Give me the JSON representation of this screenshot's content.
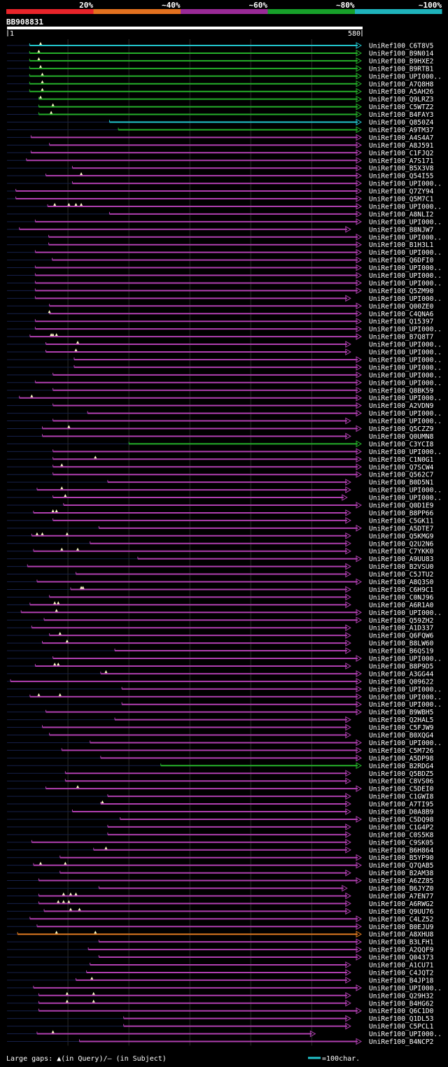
{
  "legend": {
    "pct_labels": [
      "20%",
      "~40%",
      "~60%",
      "~80%",
      "~100%"
    ],
    "colors": [
      "#e8242a",
      "#e3711f",
      "#9a2a97",
      "#17a02a",
      "#1fb3bc"
    ]
  },
  "query": {
    "name": "BB908831",
    "start_label": "1",
    "end_label": "580",
    "length": 580
  },
  "footer": {
    "gaps_label": "Large gaps: ▲(in Query)/— (in Subject)",
    "scale_label": "=100char."
  },
  "line_colors": {
    "purple": "#b03fb0",
    "green": "#25b02a",
    "cyan": "#22c4cc",
    "orange": "#e07a20"
  },
  "hits": [
    {
      "n": "UniRef100_C6T8V5",
      "s": 0.064,
      "c": "cyan",
      "g": [
        0.095
      ]
    },
    {
      "n": "UniRef100_B9N014",
      "s": 0.064,
      "c": "green",
      "g": [
        0.09
      ]
    },
    {
      "n": "UniRef100_B9HXE2",
      "s": 0.064,
      "c": "green",
      "g": [
        0.09
      ]
    },
    {
      "n": "UniRef100_B9RTB1",
      "s": 0.064,
      "c": "green",
      "g": [
        0.095
      ]
    },
    {
      "n": "UniRef100_UPI000..",
      "s": 0.064,
      "c": "green",
      "g": [
        0.1
      ]
    },
    {
      "n": "UniRef100_A7Q8H8",
      "s": 0.064,
      "c": "green",
      "g": [
        0.1
      ]
    },
    {
      "n": "UniRef100_A5AH26",
      "s": 0.064,
      "c": "green",
      "g": [
        0.1
      ]
    },
    {
      "n": "UniRef100_Q9LRZ3",
      "s": 0.09,
      "c": "green",
      "g": [
        0.095
      ]
    },
    {
      "n": "UniRef100_C5WTZ2",
      "s": 0.09,
      "c": "green",
      "g": [
        0.13
      ]
    },
    {
      "n": "UniRef100_B4FAY3",
      "s": 0.09,
      "c": "green",
      "g": [
        0.125
      ]
    },
    {
      "n": "UniRef100_Q850Z4",
      "s": 0.29,
      "c": "cyan",
      "g": []
    },
    {
      "n": "UniRef100_A9TM37",
      "s": 0.315,
      "c": "green",
      "g": []
    },
    {
      "n": "UniRef100_A4S4A7",
      "s": 0.068,
      "c": "purple",
      "g": []
    },
    {
      "n": "UniRef100_A8J591",
      "s": 0.12,
      "c": "purple",
      "g": []
    },
    {
      "n": "UniRef100_C1FJQ2",
      "s": 0.068,
      "c": "purple",
      "g": []
    },
    {
      "n": "UniRef100_A7S171",
      "s": 0.055,
      "c": "purple",
      "g": []
    },
    {
      "n": "UniRef100_B5X3V8",
      "s": 0.185,
      "c": "purple",
      "g": []
    },
    {
      "n": "UniRef100_Q54I55",
      "s": 0.11,
      "c": "purple",
      "g": [
        0.21
      ]
    },
    {
      "n": "UniRef100_UPI000..",
      "s": 0.185,
      "c": "purple",
      "g": []
    },
    {
      "n": "UniRef100_Q7ZY94",
      "s": 0.025,
      "c": "purple",
      "g": []
    },
    {
      "n": "UniRef100_Q5M7C1",
      "s": 0.025,
      "c": "purple",
      "g": []
    },
    {
      "n": "UniRef100_UPI000..",
      "s": 0.115,
      "c": "purple",
      "g": [
        0.135,
        0.175,
        0.195,
        0.21
      ]
    },
    {
      "n": "UniRef100_A8NLI2",
      "s": 0.29,
      "c": "purple",
      "g": []
    },
    {
      "n": "UniRef100_UPI000..",
      "s": 0.08,
      "c": "purple",
      "g": []
    },
    {
      "n": "UniRef100_B8NJW7",
      "s": 0.035,
      "c": "purple",
      "g": [],
      "e": 0.97
    },
    {
      "n": "UniRef100_UPI000..",
      "s": 0.118,
      "c": "purple",
      "g": []
    },
    {
      "n": "UniRef100_B1H3L1",
      "s": 0.118,
      "c": "purple",
      "g": []
    },
    {
      "n": "UniRef100_UPI000..",
      "s": 0.08,
      "c": "purple",
      "g": []
    },
    {
      "n": "UniRef100_Q6DFI0",
      "s": 0.128,
      "c": "purple",
      "g": []
    },
    {
      "n": "UniRef100_UPI000..",
      "s": 0.08,
      "c": "purple",
      "g": []
    },
    {
      "n": "UniRef100_UPI000..",
      "s": 0.08,
      "c": "purple",
      "g": []
    },
    {
      "n": "UniRef100_UPI000..",
      "s": 0.08,
      "c": "purple",
      "g": []
    },
    {
      "n": "UniRef100_Q5ZM90",
      "s": 0.08,
      "c": "purple",
      "g": []
    },
    {
      "n": "UniRef100_UPI000..",
      "s": 0.08,
      "c": "purple",
      "g": [],
      "e": 0.97
    },
    {
      "n": "UniRef100_Q00ZE0",
      "s": 0.12,
      "c": "purple",
      "g": []
    },
    {
      "n": "UniRef100_C4QNA6",
      "s": 0.12,
      "c": "purple",
      "g": [
        0.12
      ]
    },
    {
      "n": "UniRef100_Q15397",
      "s": 0.08,
      "c": "purple",
      "g": []
    },
    {
      "n": "UniRef100_UPI000..",
      "s": 0.08,
      "c": "purple",
      "g": []
    },
    {
      "n": "UniRef100_B7Q8T7",
      "s": 0.065,
      "c": "purple",
      "g": [
        0.125,
        0.13,
        0.14
      ]
    },
    {
      "n": "UniRef100_UPI000..",
      "s": 0.11,
      "c": "purple",
      "g": [
        0.2
      ],
      "e": 0.97
    },
    {
      "n": "UniRef100_UPI000..",
      "s": 0.11,
      "c": "purple",
      "g": [
        0.195
      ],
      "e": 0.97
    },
    {
      "n": "UniRef100_UPI000..",
      "s": 0.19,
      "c": "purple",
      "g": []
    },
    {
      "n": "UniRef100_UPI000..",
      "s": 0.19,
      "c": "purple",
      "g": []
    },
    {
      "n": "UniRef100_UPI000..",
      "s": 0.13,
      "c": "purple",
      "g": []
    },
    {
      "n": "UniRef100_UPI000..",
      "s": 0.08,
      "c": "purple",
      "g": []
    },
    {
      "n": "UniRef100_Q8BK59",
      "s": 0.13,
      "c": "purple",
      "g": []
    },
    {
      "n": "UniRef100_UPI000..",
      "s": 0.035,
      "c": "purple",
      "g": [
        0.07
      ]
    },
    {
      "n": "UniRef100_A2VDN9",
      "s": 0.13,
      "c": "purple",
      "g": []
    },
    {
      "n": "UniRef100_UPI000..",
      "s": 0.228,
      "c": "purple",
      "g": []
    },
    {
      "n": "UniRef100_UPI000..",
      "s": 0.13,
      "c": "purple",
      "g": [],
      "e": 0.97
    },
    {
      "n": "UniRef100_Q5CZZ9",
      "s": 0.1,
      "c": "purple",
      "g": [
        0.175
      ]
    },
    {
      "n": "UniRef100_Q0UMN8",
      "s": 0.1,
      "c": "purple",
      "g": [],
      "e": 0.97
    },
    {
      "n": "UniRef100_C3YCI8",
      "s": 0.345,
      "c": "green",
      "g": []
    },
    {
      "n": "UniRef100_UPI000..",
      "s": 0.13,
      "c": "purple",
      "g": []
    },
    {
      "n": "UniRef100_C1N0G1",
      "s": 0.13,
      "c": "purple",
      "g": [
        0.25
      ]
    },
    {
      "n": "UniRef100_Q7SCW4",
      "s": 0.13,
      "c": "purple",
      "g": [
        0.155
      ]
    },
    {
      "n": "UniRef100_Q562C7",
      "s": 0.13,
      "c": "purple",
      "g": []
    },
    {
      "n": "UniRef100_B0D5N1",
      "s": 0.285,
      "c": "purple",
      "g": [],
      "e": 0.97
    },
    {
      "n": "UniRef100_UPI000..",
      "s": 0.085,
      "c": "purple",
      "g": [
        0.155
      ],
      "e": 0.97
    },
    {
      "n": "UniRef100_UPI000..",
      "s": 0.13,
      "c": "purple",
      "g": [
        0.165
      ],
      "e": 0.96
    },
    {
      "n": "UniRef100_Q0D1E9",
      "s": 0.16,
      "c": "purple",
      "g": []
    },
    {
      "n": "UniRef100_B8PP66",
      "s": 0.075,
      "c": "purple",
      "g": [
        0.13,
        0.14
      ],
      "e": 0.97
    },
    {
      "n": "UniRef100_C5GK11",
      "s": 0.13,
      "c": "purple",
      "g": [],
      "e": 0.97
    },
    {
      "n": "UniRef100_A5DTE7",
      "s": 0.26,
      "c": "purple",
      "g": []
    },
    {
      "n": "UniRef100_Q5KMG9",
      "s": 0.07,
      "c": "purple",
      "g": [
        0.085,
        0.1,
        0.17
      ],
      "e": 0.97
    },
    {
      "n": "UniRef100_Q2U2N6",
      "s": 0.235,
      "c": "purple",
      "g": [],
      "e": 0.97
    },
    {
      "n": "UniRef100_C7YKK0",
      "s": 0.075,
      "c": "purple",
      "g": [
        0.155,
        0.2
      ],
      "e": 0.97
    },
    {
      "n": "UniRef100_A9UU83",
      "s": 0.37,
      "c": "purple",
      "g": []
    },
    {
      "n": "UniRef100_B2VSU0",
      "s": 0.058,
      "c": "purple",
      "g": [],
      "e": 0.97
    },
    {
      "n": "UniRef100_C5JTU2",
      "s": 0.195,
      "c": "purple",
      "g": [],
      "e": 0.97
    },
    {
      "n": "UniRef100_A8Q3S0",
      "s": 0.085,
      "c": "purple",
      "g": []
    },
    {
      "n": "UniRef100_C6H9C1",
      "s": 0.18,
      "c": "purple",
      "g": [
        0.21,
        0.215
      ],
      "e": 0.97
    },
    {
      "n": "UniRef100_C0NJ96",
      "s": 0.12,
      "c": "purple",
      "g": [],
      "e": 0.97
    },
    {
      "n": "UniRef100_A6R1A0",
      "s": 0.065,
      "c": "purple",
      "g": [
        0.135,
        0.145
      ],
      "e": 0.97
    },
    {
      "n": "UniRef100_UPI000..",
      "s": 0.04,
      "c": "purple",
      "g": [
        0.14
      ]
    },
    {
      "n": "UniRef100_Q59ZH2",
      "s": 0.105,
      "c": "purple",
      "g": []
    },
    {
      "n": "UniRef100_A1D337",
      "s": 0.07,
      "c": "purple",
      "g": [],
      "e": 0.97
    },
    {
      "n": "UniRef100_Q6FQW6",
      "s": 0.12,
      "c": "purple",
      "g": [
        0.15
      ],
      "e": 0.97
    },
    {
      "n": "UniRef100_B8LW60",
      "s": 0.1,
      "c": "purple",
      "g": [
        0.17
      ],
      "e": 0.97
    },
    {
      "n": "UniRef100_B6QS19",
      "s": 0.305,
      "c": "purple",
      "g": [],
      "e": 0.97
    },
    {
      "n": "UniRef100_UPI000..",
      "s": 0.13,
      "c": "purple",
      "g": []
    },
    {
      "n": "UniRef100_B8P9D5",
      "s": 0.08,
      "c": "purple",
      "g": [
        0.135,
        0.145
      ],
      "e": 0.97
    },
    {
      "n": "UniRef100_A3GG44",
      "s": 0.265,
      "c": "purple",
      "g": [
        0.28
      ]
    },
    {
      "n": "UniRef100_Q09622",
      "s": 0.01,
      "c": "purple",
      "g": []
    },
    {
      "n": "UniRef100_UPI000..",
      "s": 0.325,
      "c": "purple",
      "g": []
    },
    {
      "n": "UniRef100_UPI000..",
      "s": 0.065,
      "c": "purple",
      "g": [
        0.09,
        0.15
      ]
    },
    {
      "n": "UniRef100_UPI000..",
      "s": 0.325,
      "c": "purple",
      "g": []
    },
    {
      "n": "UniRef100_B9WBH5",
      "s": 0.11,
      "c": "purple",
      "g": []
    },
    {
      "n": "UniRef100_Q2HAL5",
      "s": 0.305,
      "c": "purple",
      "g": [],
      "e": 0.97
    },
    {
      "n": "UniRef100_C5FJW9",
      "s": 0.1,
      "c": "purple",
      "g": [],
      "e": 0.97
    },
    {
      "n": "UniRef100_B0XQG4",
      "s": 0.12,
      "c": "purple",
      "g": [],
      "e": 0.97
    },
    {
      "n": "UniRef100_UPI000..",
      "s": 0.235,
      "c": "purple",
      "g": []
    },
    {
      "n": "UniRef100_C5M726",
      "s": 0.155,
      "c": "purple",
      "g": []
    },
    {
      "n": "UniRef100_A5DP98",
      "s": 0.265,
      "c": "purple",
      "g": []
    },
    {
      "n": "UniRef100_B2RDG4",
      "s": 0.435,
      "c": "green",
      "g": []
    },
    {
      "n": "UniRef100_Q5BDZ5",
      "s": 0.165,
      "c": "purple",
      "g": [],
      "e": 0.97
    },
    {
      "n": "UniRef100_C8VS06",
      "s": 0.165,
      "c": "purple",
      "g": [],
      "e": 0.97
    },
    {
      "n": "UniRef100_C5DEI0",
      "s": 0.11,
      "c": "purple",
      "g": [
        0.2
      ]
    },
    {
      "n": "UniRef100_C1GWI8",
      "s": 0.285,
      "c": "purple",
      "g": [],
      "e": 0.97
    },
    {
      "n": "UniRef100_A7TI95",
      "s": 0.265,
      "c": "purple",
      "g": [
        0.27
      ],
      "e": 0.97
    },
    {
      "n": "UniRef100_D0A8B9",
      "s": 0.185,
      "c": "purple",
      "g": [],
      "e": 0.97
    },
    {
      "n": "UniRef100_C5DQ98",
      "s": 0.32,
      "c": "purple",
      "g": []
    },
    {
      "n": "UniRef100_C1G4P2",
      "s": 0.285,
      "c": "purple",
      "g": [],
      "e": 0.97
    },
    {
      "n": "UniRef100_C0S5K8",
      "s": 0.285,
      "c": "purple",
      "g": [],
      "e": 0.97
    },
    {
      "n": "UniRef100_C9SK05",
      "s": 0.07,
      "c": "purple",
      "g": [],
      "e": 0.97
    },
    {
      "n": "UniRef100_B6H864",
      "s": 0.245,
      "c": "purple",
      "g": [
        0.28
      ],
      "e": 0.97
    },
    {
      "n": "UniRef100_B5YP90",
      "s": 0.15,
      "c": "purple",
      "g": []
    },
    {
      "n": "UniRef100_Q7QAB5",
      "s": 0.075,
      "c": "purple",
      "g": [
        0.095,
        0.165
      ]
    },
    {
      "n": "UniRef100_B2AM38",
      "s": 0.15,
      "c": "purple",
      "g": [],
      "e": 0.97
    },
    {
      "n": "UniRef100_A6ZZ85",
      "s": 0.09,
      "c": "purple",
      "g": []
    },
    {
      "n": "UniRef100_B6JYZ0",
      "s": 0.26,
      "c": "purple",
      "g": [],
      "e": 0.96
    },
    {
      "n": "UniRef100_A7EN77",
      "s": 0.09,
      "c": "purple",
      "g": [
        0.16,
        0.18,
        0.195
      ],
      "e": 0.97
    },
    {
      "n": "UniRef100_A6RWG2",
      "s": 0.09,
      "c": "purple",
      "g": [
        0.145,
        0.16,
        0.175
      ],
      "e": 0.97
    },
    {
      "n": "UniRef100_Q9UU76",
      "s": 0.105,
      "c": "purple",
      "g": [
        0.18,
        0.205
      ],
      "e": 0.97
    },
    {
      "n": "UniRef100_C4LZ52",
      "s": 0.065,
      "c": "purple",
      "g": []
    },
    {
      "n": "UniRef100_B0EJU9",
      "s": 0.085,
      "c": "purple",
      "g": []
    },
    {
      "n": "UniRef100_A8XHU8",
      "s": 0.03,
      "c": "orange",
      "g": [
        0.14,
        0.25
      ]
    },
    {
      "n": "UniRef100_B3LFH1",
      "s": 0.26,
      "c": "purple",
      "g": []
    },
    {
      "n": "UniRef100_A2QQF9",
      "s": 0.23,
      "c": "purple",
      "g": []
    },
    {
      "n": "UniRef100_Q04373",
      "s": 0.26,
      "c": "purple",
      "g": []
    },
    {
      "n": "UniRef100_A1CU71",
      "s": 0.235,
      "c": "purple",
      "g": [],
      "e": 0.97
    },
    {
      "n": "UniRef100_C4JQT2",
      "s": 0.225,
      "c": "purple",
      "g": [],
      "e": 0.97
    },
    {
      "n": "UniRef100_B4JP18",
      "s": 0.195,
      "c": "purple",
      "g": [
        0.24
      ],
      "e": 0.97
    },
    {
      "n": "UniRef100_UPI000..",
      "s": 0.075,
      "c": "purple",
      "g": []
    },
    {
      "n": "UniRef100_Q29H32",
      "s": 0.09,
      "c": "purple",
      "g": [
        0.17,
        0.245
      ],
      "e": 0.97
    },
    {
      "n": "UniRef100_B4HG62",
      "s": 0.09,
      "c": "purple",
      "g": [
        0.17,
        0.245
      ],
      "e": 0.97
    },
    {
      "n": "UniRef100_Q6C1D0",
      "s": 0.09,
      "c": "purple",
      "g": []
    },
    {
      "n": "UniRef100_Q1DL53",
      "s": 0.33,
      "c": "purple",
      "g": [],
      "e": 0.97
    },
    {
      "n": "UniRef100_C5PCL1",
      "s": 0.33,
      "c": "purple",
      "g": [],
      "e": 0.97
    },
    {
      "n": "UniRef100_UPI000..",
      "s": 0.085,
      "c": "purple",
      "g": [
        0.13
      ],
      "e": 0.87
    },
    {
      "n": "UniRef100_B4NCP2",
      "s": 0.205,
      "c": "purple",
      "g": []
    }
  ]
}
